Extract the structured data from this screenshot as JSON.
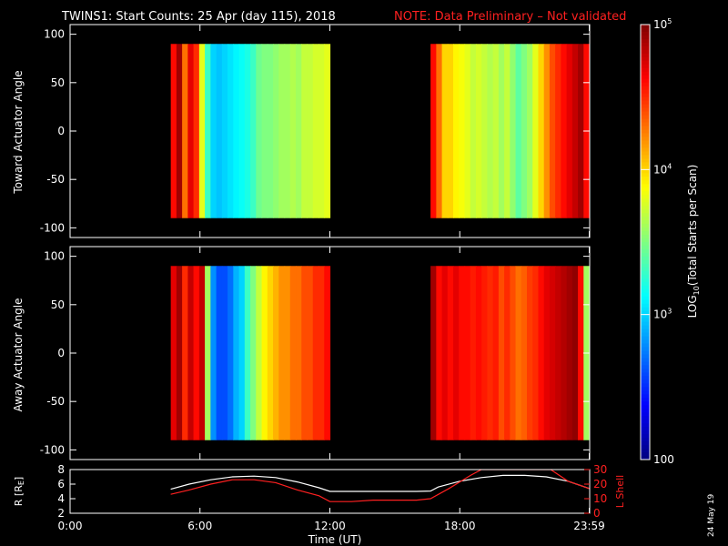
{
  "title": {
    "main": "TWINS1: Start Counts: 25 Apr (day 115), 2018",
    "note": "NOTE: Data Preliminary – Not validated",
    "note_color": "#ff2020"
  },
  "date_stamp": "24 May 19",
  "chart_data": [
    {
      "type": "heatmap",
      "name": "toward-panel",
      "ylabel": "Toward Actuator Angle",
      "ylim": [
        -110,
        110
      ],
      "yticks": [
        100,
        50,
        0,
        -50,
        -100
      ],
      "xlim": [
        0,
        24
      ],
      "angle_range": [
        -90,
        90
      ],
      "color_scale": "log10",
      "segments": [
        {
          "t_start": 4.65,
          "t_end": 12.0,
          "profile": [
            4.6,
            4.9,
            4.3,
            4.7,
            4.5,
            3.8,
            3.3,
            3.0,
            2.95,
            3.0,
            3.05,
            3.1,
            3.15,
            3.2,
            3.3,
            3.45,
            3.5,
            3.5,
            3.55,
            3.6,
            3.6,
            3.65,
            3.6,
            3.7,
            3.7,
            3.75,
            3.75,
            3.8
          ]
        },
        {
          "t_start": 16.65,
          "t_end": 23.98,
          "profile": [
            4.6,
            4.3,
            4.0,
            4.0,
            3.9,
            3.85,
            3.8,
            3.7,
            3.75,
            3.7,
            3.65,
            3.7,
            3.6,
            3.7,
            3.55,
            3.4,
            3.5,
            3.6,
            3.8,
            4.0,
            4.2,
            4.4,
            4.5,
            4.6,
            4.7,
            4.8,
            4.9,
            4.6
          ]
        }
      ]
    },
    {
      "type": "heatmap",
      "name": "away-panel",
      "ylabel": "Away Actuator Angle",
      "ylim": [
        -110,
        110
      ],
      "yticks": [
        100,
        50,
        0,
        -50,
        -100
      ],
      "xlim": [
        0,
        24
      ],
      "angle_range": [
        -90,
        90
      ],
      "color_scale": "log10",
      "segments": [
        {
          "t_start": 4.65,
          "t_end": 12.0,
          "profile": [
            4.7,
            4.9,
            4.5,
            4.8,
            4.6,
            4.8,
            3.6,
            2.8,
            2.6,
            2.6,
            2.7,
            2.9,
            3.0,
            3.3,
            3.5,
            3.7,
            3.9,
            4.0,
            4.1,
            4.2,
            4.2,
            4.3,
            4.3,
            4.4,
            4.4,
            4.5,
            4.5,
            4.6
          ]
        },
        {
          "t_start": 16.65,
          "t_end": 23.98,
          "profile": [
            4.9,
            4.6,
            4.7,
            4.6,
            4.7,
            4.6,
            4.6,
            4.55,
            4.6,
            4.55,
            4.5,
            4.55,
            4.4,
            4.5,
            4.4,
            4.3,
            4.35,
            4.45,
            4.5,
            4.6,
            4.7,
            4.75,
            4.8,
            4.85,
            4.9,
            4.95,
            4.6,
            3.6
          ]
        }
      ]
    },
    {
      "type": "line",
      "name": "orbit-panel",
      "ylabel_left": "R [R",
      "ylabel_left_sub": "E",
      "ylabel_left_end": "]",
      "ylabel_right": "L Shell",
      "xlabel": "Time (UT)",
      "xticks": [
        {
          "t": 0,
          "label": "0:00"
        },
        {
          "t": 6,
          "label": "6:00"
        },
        {
          "t": 12,
          "label": "12:00"
        },
        {
          "t": 18,
          "label": "18:00"
        },
        {
          "t": 23.98,
          "label": "23:59"
        }
      ],
      "xlim": [
        0,
        24
      ],
      "ylim_left": [
        2,
        8
      ],
      "yticks_left": [
        8,
        6,
        4,
        2
      ],
      "ylim_right": [
        0,
        30
      ],
      "yticks_right": [
        30,
        20,
        10,
        0
      ],
      "series": [
        {
          "axis": "left",
          "color": "#ffffff",
          "x": [
            4.65,
            5.5,
            6.5,
            7.5,
            8.5,
            9.5,
            10.5,
            11.5,
            12.0,
            13,
            14,
            15,
            16,
            16.65,
            17,
            18,
            19,
            20,
            21,
            22,
            23,
            23.98
          ],
          "y": [
            5.3,
            6.0,
            6.6,
            7.0,
            7.1,
            6.9,
            6.3,
            5.5,
            5.0,
            5.0,
            5.0,
            5.0,
            5.0,
            5.05,
            5.6,
            6.4,
            6.9,
            7.2,
            7.2,
            7.0,
            6.4,
            5.4
          ]
        },
        {
          "axis": "right",
          "color": "#ff2020",
          "x": [
            4.65,
            5.5,
            6.5,
            7.5,
            8.5,
            9.5,
            10.5,
            11.5,
            12.0,
            13,
            14,
            15,
            16,
            16.65,
            17.5,
            18.5,
            19.0,
            22.2,
            23.0,
            23.98
          ],
          "y": [
            13,
            16,
            20,
            23,
            23,
            21,
            16,
            12,
            8,
            8,
            9,
            9,
            9,
            10,
            17,
            26,
            30,
            30,
            22,
            17
          ]
        }
      ]
    }
  ],
  "colorbar": {
    "label_pre": "LOG",
    "label_sub": "10",
    "label_post": "(Total Starts per Scan)",
    "lim": [
      2,
      5
    ],
    "ticks": [
      {
        "v": 5,
        "base": "10",
        "exp": "5"
      },
      {
        "v": 4,
        "base": "10",
        "exp": "4"
      },
      {
        "v": 3,
        "base": "10",
        "exp": "3"
      },
      {
        "v": 2,
        "base": "100",
        "exp": ""
      }
    ]
  }
}
